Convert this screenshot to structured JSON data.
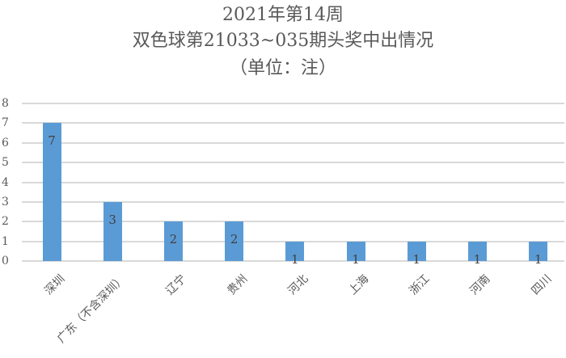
{
  "chart_data": {
    "type": "bar",
    "title": "2021年第14周",
    "subtitle": "双色球第21033~035期头奖中出情况",
    "unit_note": "（单位：注）",
    "categories": [
      "深圳",
      "广东（不含深圳）",
      "辽宁",
      "贵州",
      "河北",
      "上海",
      "浙江",
      "河南",
      "四川"
    ],
    "values": [
      7,
      3,
      2,
      2,
      1,
      1,
      1,
      1,
      1
    ],
    "xlabel": "",
    "ylabel": "",
    "ylim": [
      0,
      8
    ],
    "yticks": [
      0,
      1,
      2,
      3,
      4,
      5,
      6,
      7,
      8
    ],
    "grid": true,
    "legend": null,
    "data_labels": true,
    "bar_color": "#5b9bd5"
  }
}
